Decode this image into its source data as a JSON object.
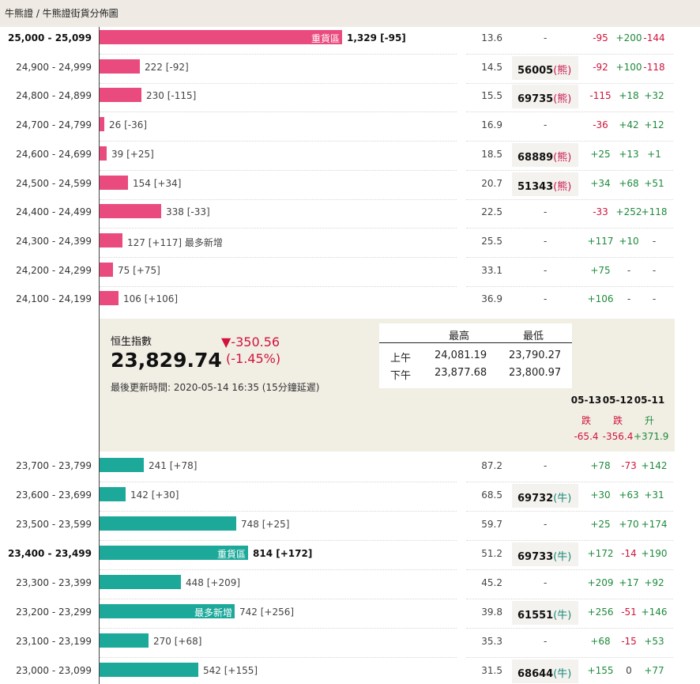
{
  "breadcrumb": "牛熊證 / 牛熊證街貨分佈圖",
  "bear_rows": [
    {
      "range": "25,000 - 25,099",
      "count": "1,329 [-95]",
      "value": 1329,
      "inbar": "重貨區",
      "pct": "13.6",
      "code": "",
      "tag": "",
      "c1": "-95",
      "c2": "+200",
      "c3": "-144",
      "bold": true
    },
    {
      "range": "24,900 - 24,999",
      "count": "222 [-92]",
      "value": 222,
      "inbar": "",
      "pct": "14.5",
      "code": "56005",
      "tag": "(熊)",
      "c1": "-92",
      "c2": "+100",
      "c3": "-118",
      "bold": false
    },
    {
      "range": "24,800 - 24,899",
      "count": "230 [-115]",
      "value": 230,
      "inbar": "",
      "pct": "15.5",
      "code": "69735",
      "tag": "(熊)",
      "c1": "-115",
      "c2": "+18",
      "c3": "+32",
      "bold": false
    },
    {
      "range": "24,700 - 24,799",
      "count": "26 [-36]",
      "value": 26,
      "inbar": "",
      "pct": "16.9",
      "code": "",
      "tag": "",
      "c1": "-36",
      "c2": "+42",
      "c3": "+12",
      "bold": false
    },
    {
      "range": "24,600 - 24,699",
      "count": "39 [+25]",
      "value": 39,
      "inbar": "",
      "pct": "18.5",
      "code": "68889",
      "tag": "(熊)",
      "c1": "+25",
      "c2": "+13",
      "c3": "+1",
      "bold": false
    },
    {
      "range": "24,500 - 24,599",
      "count": "154 [+34]",
      "value": 154,
      "inbar": "",
      "pct": "20.7",
      "code": "51343",
      "tag": "(熊)",
      "c1": "+34",
      "c2": "+68",
      "c3": "+51",
      "bold": false
    },
    {
      "range": "24,400 - 24,499",
      "count": "338 [-33]",
      "value": 338,
      "inbar": "",
      "pct": "22.5",
      "code": "",
      "tag": "",
      "c1": "-33",
      "c2": "+252",
      "c3": "+118",
      "bold": false
    },
    {
      "range": "24,300 - 24,399",
      "count": "127 [+117]  最多新增",
      "value": 127,
      "inbar": "",
      "pct": "25.5",
      "code": "",
      "tag": "",
      "c1": "+117",
      "c2": "+10",
      "c3": "-",
      "bold": false
    },
    {
      "range": "24,200 - 24,299",
      "count": "75 [+75]",
      "value": 75,
      "inbar": "",
      "pct": "33.1",
      "code": "",
      "tag": "",
      "c1": "+75",
      "c2": "-",
      "c3": "-",
      "bold": false
    },
    {
      "range": "24,100 - 24,199",
      "count": "106 [+106]",
      "value": 106,
      "inbar": "",
      "pct": "36.9",
      "code": "",
      "tag": "",
      "c1": "+106",
      "c2": "-",
      "c3": "-",
      "bold": false
    }
  ],
  "index": {
    "label": "恒生指數",
    "price": "23,829.74",
    "change": "▼-350.56",
    "change_pct": "(-1.45%)",
    "updated": "最後更新時間: 2020-05-14 16:35 (15分鐘延遲)",
    "hl_headers": [
      "最高",
      "最低"
    ],
    "hl_rows": [
      {
        "session": "上午",
        "high": "24,081.19",
        "low": "23,790.27"
      },
      {
        "session": "下午",
        "high": "23,877.68",
        "low": "23,800.97"
      }
    ],
    "daily": [
      {
        "date": "05-13",
        "dir": "跌",
        "chg": "-65.4"
      },
      {
        "date": "05-12",
        "dir": "跌",
        "chg": "-356.4"
      },
      {
        "date": "05-11",
        "dir": "升",
        "chg": "+371.9"
      }
    ]
  },
  "bull_rows": [
    {
      "range": "23,700 - 23,799",
      "count": "241 [+78]",
      "value": 241,
      "inbar": "",
      "pct": "87.2",
      "code": "",
      "tag": "",
      "c1": "+78",
      "c2": "-73",
      "c3": "+142",
      "bold": false
    },
    {
      "range": "23,600 - 23,699",
      "count": "142 [+30]",
      "value": 142,
      "inbar": "",
      "pct": "68.5",
      "code": "69732",
      "tag": "(牛)",
      "c1": "+30",
      "c2": "+63",
      "c3": "+31",
      "bold": false
    },
    {
      "range": "23,500 - 23,599",
      "count": "748 [+25]",
      "value": 748,
      "inbar": "",
      "pct": "59.7",
      "code": "",
      "tag": "",
      "c1": "+25",
      "c2": "+70",
      "c3": "+174",
      "bold": false
    },
    {
      "range": "23,400 - 23,499",
      "count": "814 [+172]",
      "value": 814,
      "inbar": "重貨區",
      "pct": "51.2",
      "code": "69733",
      "tag": "(牛)",
      "c1": "+172",
      "c2": "-14",
      "c3": "+190",
      "bold": true
    },
    {
      "range": "23,300 - 23,399",
      "count": "448 [+209]",
      "value": 448,
      "inbar": "",
      "pct": "45.2",
      "code": "",
      "tag": "",
      "c1": "+209",
      "c2": "+17",
      "c3": "+92",
      "bold": false
    },
    {
      "range": "23,200 - 23,299",
      "count": "742 [+256]",
      "value": 742,
      "inbar": "最多新增",
      "pct": "39.8",
      "code": "61551",
      "tag": "(牛)",
      "c1": "+256",
      "c2": "-51",
      "c3": "+146",
      "bold": false
    },
    {
      "range": "23,100 - 23,199",
      "count": "270 [+68]",
      "value": 270,
      "inbar": "",
      "pct": "35.3",
      "code": "",
      "tag": "",
      "c1": "+68",
      "c2": "-15",
      "c3": "+53",
      "bold": false
    },
    {
      "range": "23,000 - 23,099",
      "count": "542 [+155]",
      "value": 542,
      "inbar": "",
      "pct": "31.5",
      "code": "68644",
      "tag": "(牛)",
      "c1": "+155",
      "c2": "0",
      "c3": "+77",
      "bold": false
    }
  ],
  "dash": "-",
  "colors": {
    "bear": "#ea4b7e",
    "bull": "#1ca99a",
    "neg": "#d0143c",
    "pos": "#1e8a3c"
  }
}
